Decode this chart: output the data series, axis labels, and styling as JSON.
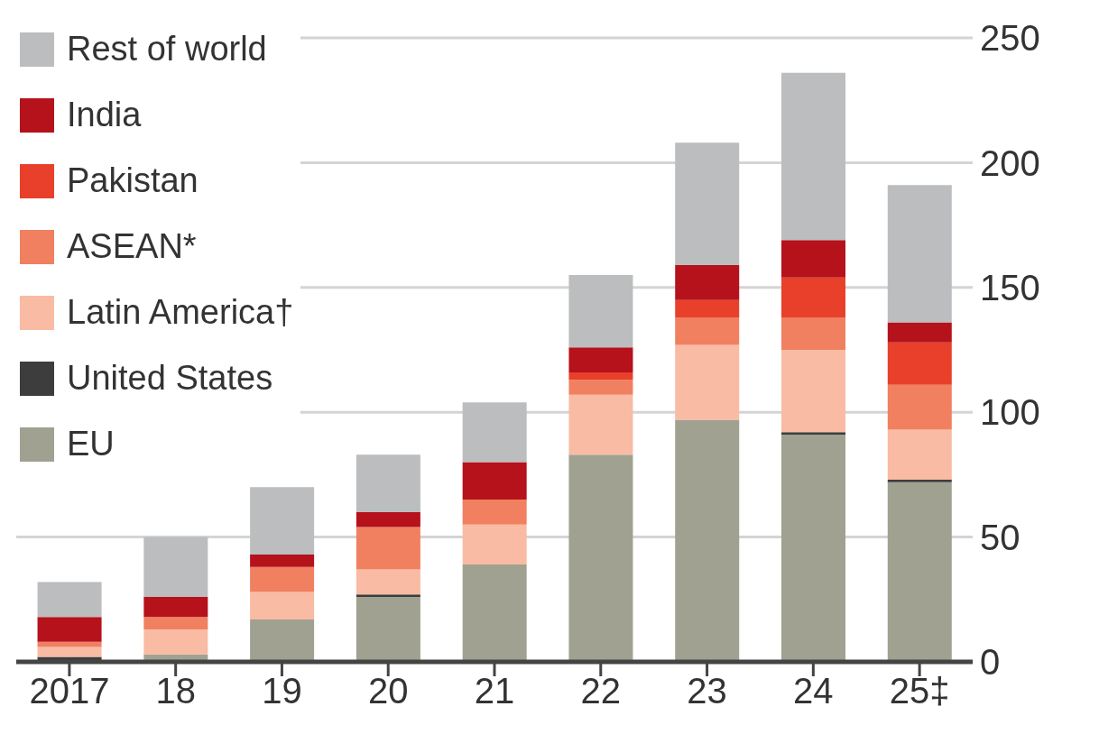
{
  "chart_data": {
    "type": "bar",
    "stacked": true,
    "categories": [
      "2017",
      "18",
      "19",
      "20",
      "21",
      "22",
      "23",
      "24",
      "25‡"
    ],
    "series": [
      {
        "name": "EU",
        "color": "#a0a190",
        "values": [
          null,
          3,
          17,
          26,
          39,
          83,
          97,
          91,
          72
        ]
      },
      {
        "name": "United States",
        "color": "#3d3d3d",
        "values": [
          2,
          0,
          0,
          1,
          0,
          0,
          0,
          1,
          1
        ]
      },
      {
        "name": "Latin America†",
        "color": "#f9bba3",
        "values": [
          4,
          10,
          11,
          10,
          16,
          24,
          30,
          33,
          20
        ]
      },
      {
        "name": "ASEAN*",
        "color": "#f08060",
        "values": [
          2,
          5,
          10,
          17,
          10,
          6,
          11,
          13,
          18
        ]
      },
      {
        "name": "Pakistan",
        "color": "#e8402a",
        "values": [
          0,
          0,
          0,
          0,
          0,
          3,
          7,
          16,
          17
        ]
      },
      {
        "name": "India",
        "color": "#b5121b",
        "values": [
          10,
          8,
          5,
          6,
          15,
          10,
          14,
          15,
          8
        ]
      },
      {
        "name": "Rest of world",
        "color": "#bbbdbf",
        "values": [
          14,
          24,
          27,
          23,
          24,
          29,
          49,
          67,
          55
        ]
      }
    ],
    "ylim": [
      0,
      250
    ],
    "yticks": [
      0,
      50,
      100,
      150,
      200,
      250
    ],
    "grid": "y",
    "legend": "top left"
  }
}
